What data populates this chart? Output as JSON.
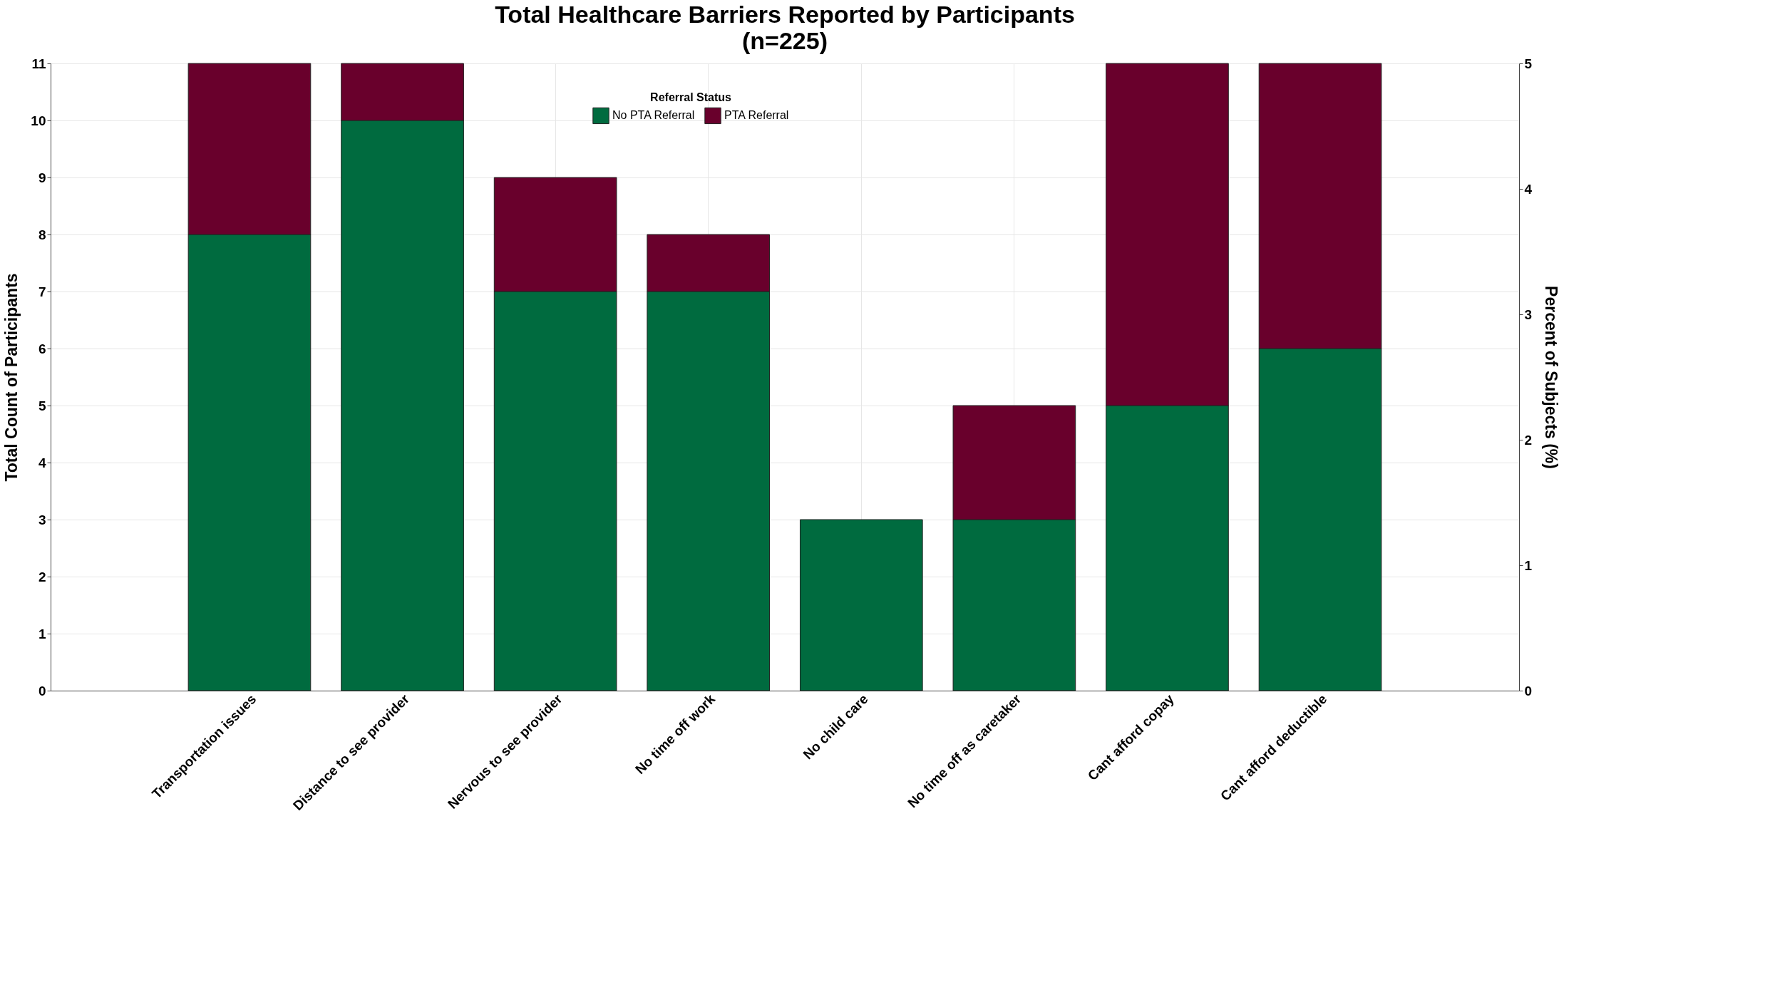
{
  "chart_data": {
    "type": "bar",
    "stacked": true,
    "title": "Total Healthcare Barriers Reported by Participants",
    "subtitle": "(n=225)",
    "categories": [
      "Transportation issues",
      "Distance to see provider",
      "Nervous to see provider",
      "No time off work",
      "No child care",
      "No time off as caretaker",
      "Cant afford copay",
      "Cant afford deductible"
    ],
    "series": [
      {
        "name": "No PTA Referral",
        "color": "#006b3f",
        "values": [
          8,
          10,
          7,
          7,
          3,
          3,
          5,
          6
        ]
      },
      {
        "name": "PTA Referral",
        "color": "#69002c",
        "values": [
          3,
          1,
          2,
          1,
          0,
          2,
          6,
          5
        ]
      }
    ],
    "ylabel": "Total Count of Participants",
    "y2label": "Percent of Subjects (%)",
    "ylim": [
      0,
      11
    ],
    "yticks": [
      0,
      1,
      2,
      3,
      4,
      5,
      6,
      7,
      8,
      9,
      10,
      11
    ],
    "y2lim": [
      0,
      5
    ],
    "y2ticks": [
      0,
      1,
      2,
      3,
      4,
      5
    ],
    "legend_title": "Referral Status",
    "legend": "top",
    "grid": true
  }
}
